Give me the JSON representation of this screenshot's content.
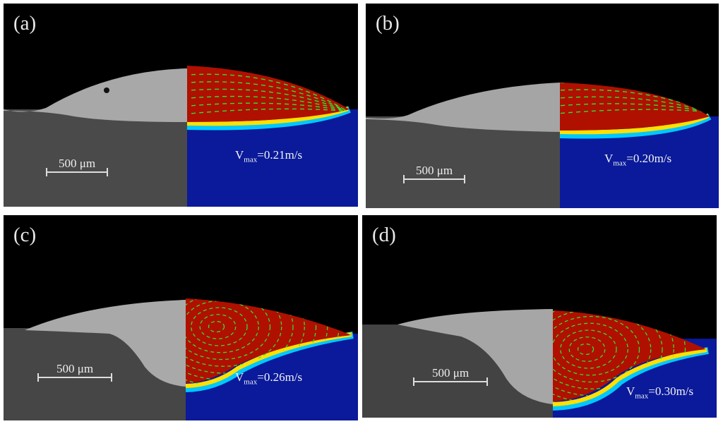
{
  "panels": [
    {
      "label": "(a)",
      "scale_text": "500 μm",
      "v_symbol": "V",
      "v_sub": "max",
      "v_value": "=0.21m/s",
      "flow": "lateral"
    },
    {
      "label": "(b)",
      "scale_text": "500 μm",
      "v_symbol": "V",
      "v_sub": "max",
      "v_value": "=0.20m/s",
      "flow": "lateral"
    },
    {
      "label": "(c)",
      "scale_text": "500 μm",
      "v_symbol": "V",
      "v_sub": "max",
      "v_value": "=0.26m/s",
      "flow": "vortex"
    },
    {
      "label": "(d)",
      "scale_text": "500 μm",
      "v_symbol": "V",
      "v_sub": "max",
      "v_value": "=0.30m/s",
      "flow": "vortex"
    }
  ],
  "colors": {
    "background": "#000000",
    "substrate_micrograph": "#4a4a4a",
    "bead_micrograph": "#a9a9a9",
    "melt_pool": "#b01000",
    "substrate_sim": "#0a1a9a",
    "velocity_arrows": "#33dd33"
  }
}
